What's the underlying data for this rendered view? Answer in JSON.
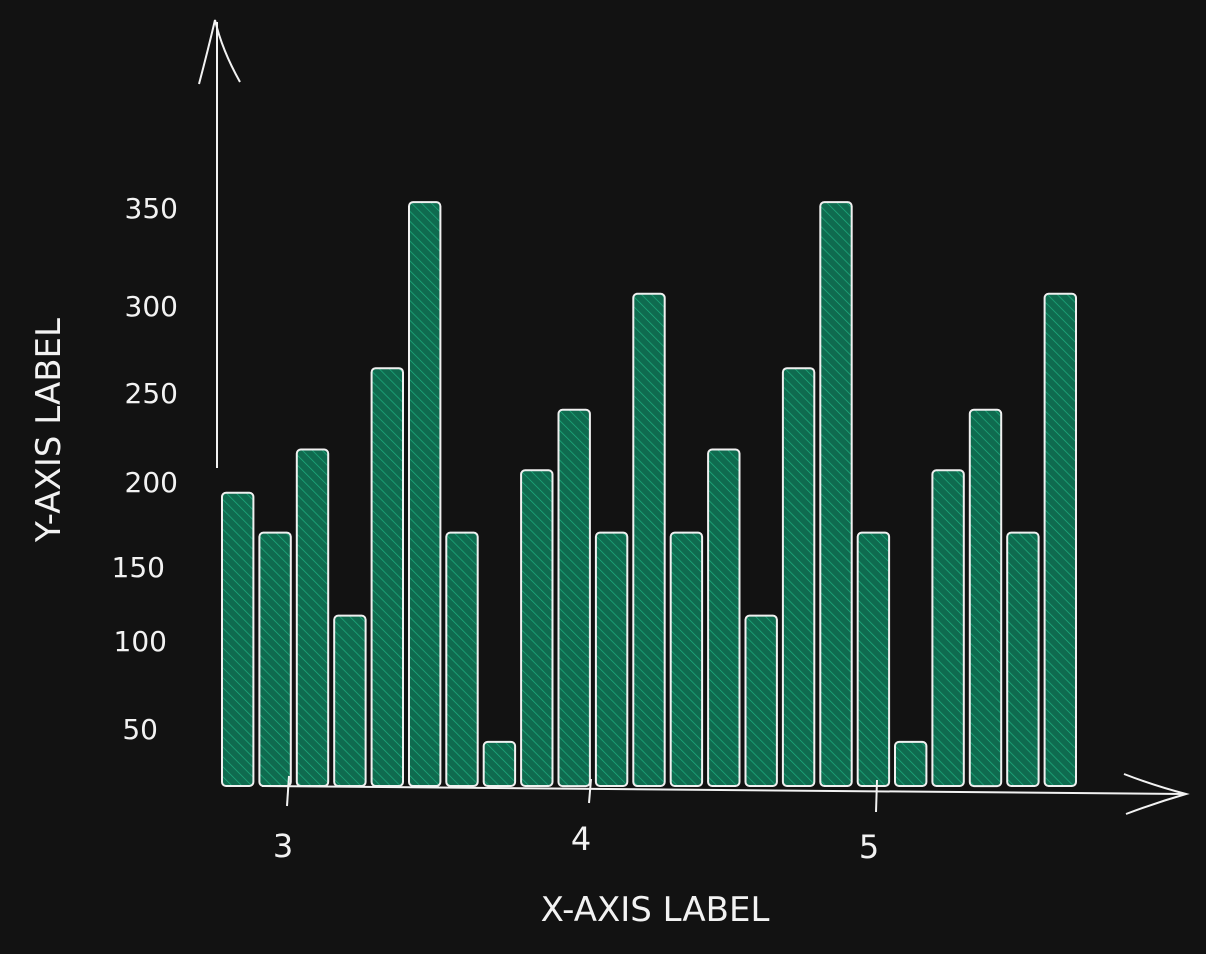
{
  "chart_data": {
    "type": "bar",
    "title": "",
    "xlabel": "X-AXIS LABEL",
    "ylabel": "Y-AXIS LABEL",
    "x_ticks": [
      "3",
      "4",
      "5"
    ],
    "y_ticks": [
      "50",
      "100",
      "150",
      "200",
      "250",
      "300",
      "350"
    ],
    "ylim": [
      0,
      400
    ],
    "values": [
      177,
      154,
      202,
      106,
      249,
      345,
      154,
      33,
      190,
      225,
      154,
      292,
      154,
      202,
      106,
      249,
      345,
      154,
      33,
      190,
      225,
      154,
      292
    ],
    "style": {
      "fill": "#0f6b4f",
      "hatch": "#1fae80",
      "stroke": "#f0f0f0"
    }
  }
}
